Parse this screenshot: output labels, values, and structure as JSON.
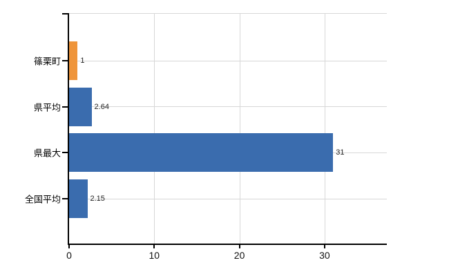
{
  "chart_data": {
    "type": "bar",
    "orientation": "horizontal",
    "title": "",
    "categories": [
      "篠栗町",
      "県平均",
      "県最大",
      "全国平均"
    ],
    "values": [
      1,
      2.64,
      31,
      2.15
    ],
    "value_labels": [
      "1",
      "2.64",
      "31",
      "2.15"
    ],
    "bar_colors": [
      "#ef953b",
      "#3a6cae",
      "#3a6cae",
      "#3a6cae"
    ],
    "x_ticks": [
      0,
      10,
      20,
      30
    ],
    "x_tick_labels": [
      "0",
      "10",
      "20",
      "30"
    ],
    "xlim": [
      0,
      37.3
    ],
    "grid": true,
    "legend": false
  },
  "colors": {
    "orange": "#ef953b",
    "blue": "#3a6cae",
    "grid": "#d7d7d7",
    "axis": "#000000",
    "category_text": "#000000",
    "value_text": "#222222",
    "tick_text": "#111111"
  }
}
